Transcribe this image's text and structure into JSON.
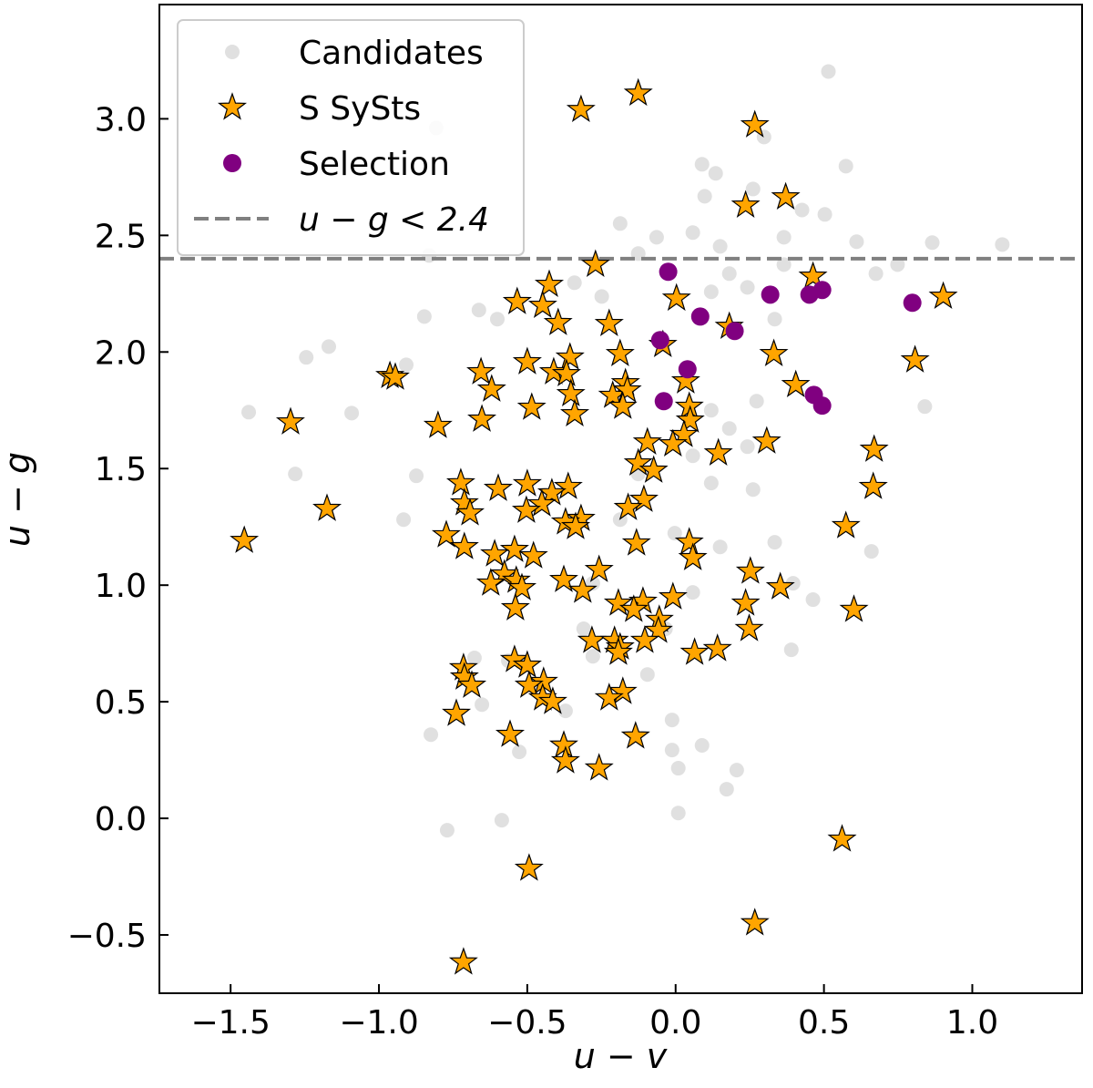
{
  "chart_data": {
    "type": "scatter",
    "xlabel": "u − v",
    "ylabel": "u − g",
    "xlim": [
      -1.74,
      1.37
    ],
    "ylim": [
      -0.75,
      3.49
    ],
    "xticks": [
      {
        "value": -1.5,
        "label": "−1.5"
      },
      {
        "value": -1.0,
        "label": "−1.0"
      },
      {
        "value": -0.5,
        "label": "−0.5"
      },
      {
        "value": 0.0,
        "label": "0.0"
      },
      {
        "value": 0.5,
        "label": "0.5"
      },
      {
        "value": 1.0,
        "label": "1.0"
      }
    ],
    "yticks": [
      {
        "value": -0.5,
        "label": "−0.5"
      },
      {
        "value": 0.0,
        "label": "0.0"
      },
      {
        "value": 0.5,
        "label": "0.5"
      },
      {
        "value": 1.0,
        "label": "1.0"
      },
      {
        "value": 1.5,
        "label": "1.5"
      },
      {
        "value": 2.0,
        "label": "2.0"
      },
      {
        "value": 2.5,
        "label": "2.5"
      },
      {
        "value": 3.0,
        "label": "3.0"
      }
    ],
    "legend": "upper left",
    "hline": {
      "y": 2.4,
      "label": "u − g < 2.4",
      "color": "#808080"
    },
    "series": [
      {
        "name": "Candidates",
        "marker": "circle",
        "color": "#d3d3d3",
        "x": [
          0.515,
          -0.807,
          0.298,
          0.089,
          0.135,
          0.574,
          0.261,
          0.098,
          0.426,
          0.503,
          1.101,
          0.865,
          0.61,
          -0.187,
          -0.064,
          0.058,
          0.15,
          0.365,
          -0.126,
          0.181,
          0.242,
          0.365,
          0.12,
          0.334,
          0.675,
          0.748,
          -0.831,
          -0.341,
          -0.249,
          -0.663,
          -0.601,
          -0.847,
          -1.169,
          -1.245,
          -0.908,
          -1.439,
          -1.092,
          0.84,
          -1.282,
          -0.874,
          -0.917,
          -0.126,
          0.058,
          0.181,
          0.273,
          0.12,
          0.242,
          0.12,
          0.261,
          -0.003,
          0.15,
          0.334,
          0.66,
          0.396,
          0.463,
          0.39,
          -0.034,
          -0.31,
          -0.279,
          -0.678,
          -0.564,
          -0.653,
          -0.371,
          -0.012,
          0.089,
          -0.012,
          0.009,
          0.206,
          0.172,
          -0.527,
          -0.825,
          -0.586,
          -0.77,
          0.009,
          -0.095,
          0.058,
          -0.187,
          -0.279
        ],
        "y": [
          3.203,
          2.961,
          2.922,
          2.805,
          2.766,
          2.797,
          2.699,
          2.668,
          2.609,
          2.59,
          2.461,
          2.469,
          2.473,
          2.551,
          2.492,
          2.512,
          2.453,
          2.492,
          2.422,
          2.336,
          2.277,
          2.375,
          2.258,
          2.141,
          2.336,
          2.375,
          2.414,
          2.297,
          2.238,
          2.18,
          2.141,
          2.152,
          2.023,
          1.977,
          1.945,
          1.742,
          1.738,
          1.766,
          1.477,
          1.469,
          1.281,
          1.477,
          1.555,
          1.672,
          1.789,
          1.75,
          1.594,
          1.438,
          1.41,
          1.223,
          1.164,
          1.184,
          1.145,
          1.008,
          0.938,
          0.723,
          0.813,
          0.813,
          0.695,
          0.688,
          0.676,
          0.488,
          0.461,
          0.422,
          0.313,
          0.293,
          0.215,
          0.207,
          0.125,
          0.285,
          0.359,
          -0.008,
          -0.051,
          0.023,
          0.617,
          0.969,
          1.281,
          1.008
        ]
      },
      {
        "name": "S SySts",
        "marker": "star",
        "color": "#ffa500",
        "x": [
          -0.126,
          -0.319,
          0.267,
          0.371,
          0.236,
          -0.27,
          0.463,
          -0.426,
          -0.534,
          0.003,
          -0.448,
          0.902,
          -0.396,
          -0.224,
          0.181,
          -0.043,
          -0.187,
          0.331,
          -0.356,
          0.807,
          -0.5,
          -0.656,
          -0.411,
          -0.368,
          -0.963,
          -0.945,
          0.034,
          -0.169,
          0.405,
          -0.62,
          -0.353,
          -0.212,
          -0.163,
          -0.485,
          -0.178,
          0.046,
          -0.34,
          -0.653,
          0.049,
          -1.298,
          -0.801,
          0.028,
          0.307,
          -0.095,
          -0.009,
          0.669,
          0.144,
          -0.126,
          -0.074,
          -0.724,
          -0.5,
          -0.362,
          -0.598,
          0.666,
          -0.417,
          -0.107,
          -0.712,
          -0.451,
          -1.175,
          -0.16,
          -0.693,
          -0.503,
          -0.319,
          -0.371,
          -0.337,
          0.574,
          -0.773,
          0.046,
          -1.454,
          -0.132,
          -0.712,
          -0.543,
          -0.61,
          -0.479,
          0.058,
          -0.258,
          0.252,
          -0.577,
          -0.537,
          -0.377,
          -0.623,
          0.353,
          -0.518,
          -0.313,
          -0.009,
          -0.193,
          -0.11,
          0.236,
          -0.54,
          -0.141,
          0.601,
          -0.055,
          -0.058,
          0.248,
          -0.282,
          -0.206,
          -0.104,
          -0.187,
          0.141,
          -0.193,
          0.064,
          -0.543,
          -0.5,
          -0.715,
          -0.712,
          -0.687,
          -0.445,
          -0.494,
          -0.448,
          -0.178,
          -0.224,
          -0.414,
          -0.739,
          -0.558,
          -0.135,
          -0.377,
          -0.371,
          -0.258,
          0.561,
          -0.494,
          0.267,
          -0.715
        ],
        "y": [
          3.109,
          3.039,
          2.973,
          2.664,
          2.629,
          2.375,
          2.324,
          2.289,
          2.215,
          2.23,
          2.199,
          2.238,
          2.125,
          2.121,
          2.109,
          2.031,
          1.992,
          1.992,
          1.977,
          1.965,
          1.957,
          1.914,
          1.914,
          1.906,
          1.898,
          1.891,
          1.875,
          1.867,
          1.859,
          1.84,
          1.82,
          1.813,
          1.836,
          1.762,
          1.766,
          1.766,
          1.734,
          1.711,
          1.707,
          1.699,
          1.684,
          1.645,
          1.617,
          1.613,
          1.605,
          1.582,
          1.566,
          1.523,
          1.492,
          1.438,
          1.434,
          1.422,
          1.414,
          1.422,
          1.395,
          1.367,
          1.352,
          1.348,
          1.328,
          1.332,
          1.309,
          1.32,
          1.285,
          1.27,
          1.25,
          1.254,
          1.215,
          1.184,
          1.191,
          1.18,
          1.164,
          1.152,
          1.133,
          1.125,
          1.117,
          1.066,
          1.059,
          1.047,
          1.02,
          1.023,
          1.008,
          0.992,
          0.988,
          0.977,
          0.949,
          0.922,
          0.93,
          0.922,
          0.902,
          0.895,
          0.895,
          0.852,
          0.805,
          0.813,
          0.762,
          0.762,
          0.762,
          0.734,
          0.727,
          0.711,
          0.711,
          0.68,
          0.656,
          0.645,
          0.605,
          0.57,
          0.586,
          0.57,
          0.516,
          0.543,
          0.516,
          0.5,
          0.449,
          0.359,
          0.352,
          0.313,
          0.246,
          0.215,
          -0.09,
          -0.215,
          -0.449,
          -0.617
        ]
      },
      {
        "name": "Selection",
        "marker": "circle",
        "color": "#800080",
        "x": [
          -0.025,
          0.319,
          0.451,
          0.494,
          0.798,
          0.083,
          0.199,
          -0.052,
          0.04,
          0.466,
          0.494,
          -0.04
        ],
        "y": [
          2.344,
          2.246,
          2.246,
          2.266,
          2.211,
          2.152,
          2.09,
          2.051,
          1.926,
          1.816,
          1.77,
          1.789
        ]
      }
    ]
  }
}
